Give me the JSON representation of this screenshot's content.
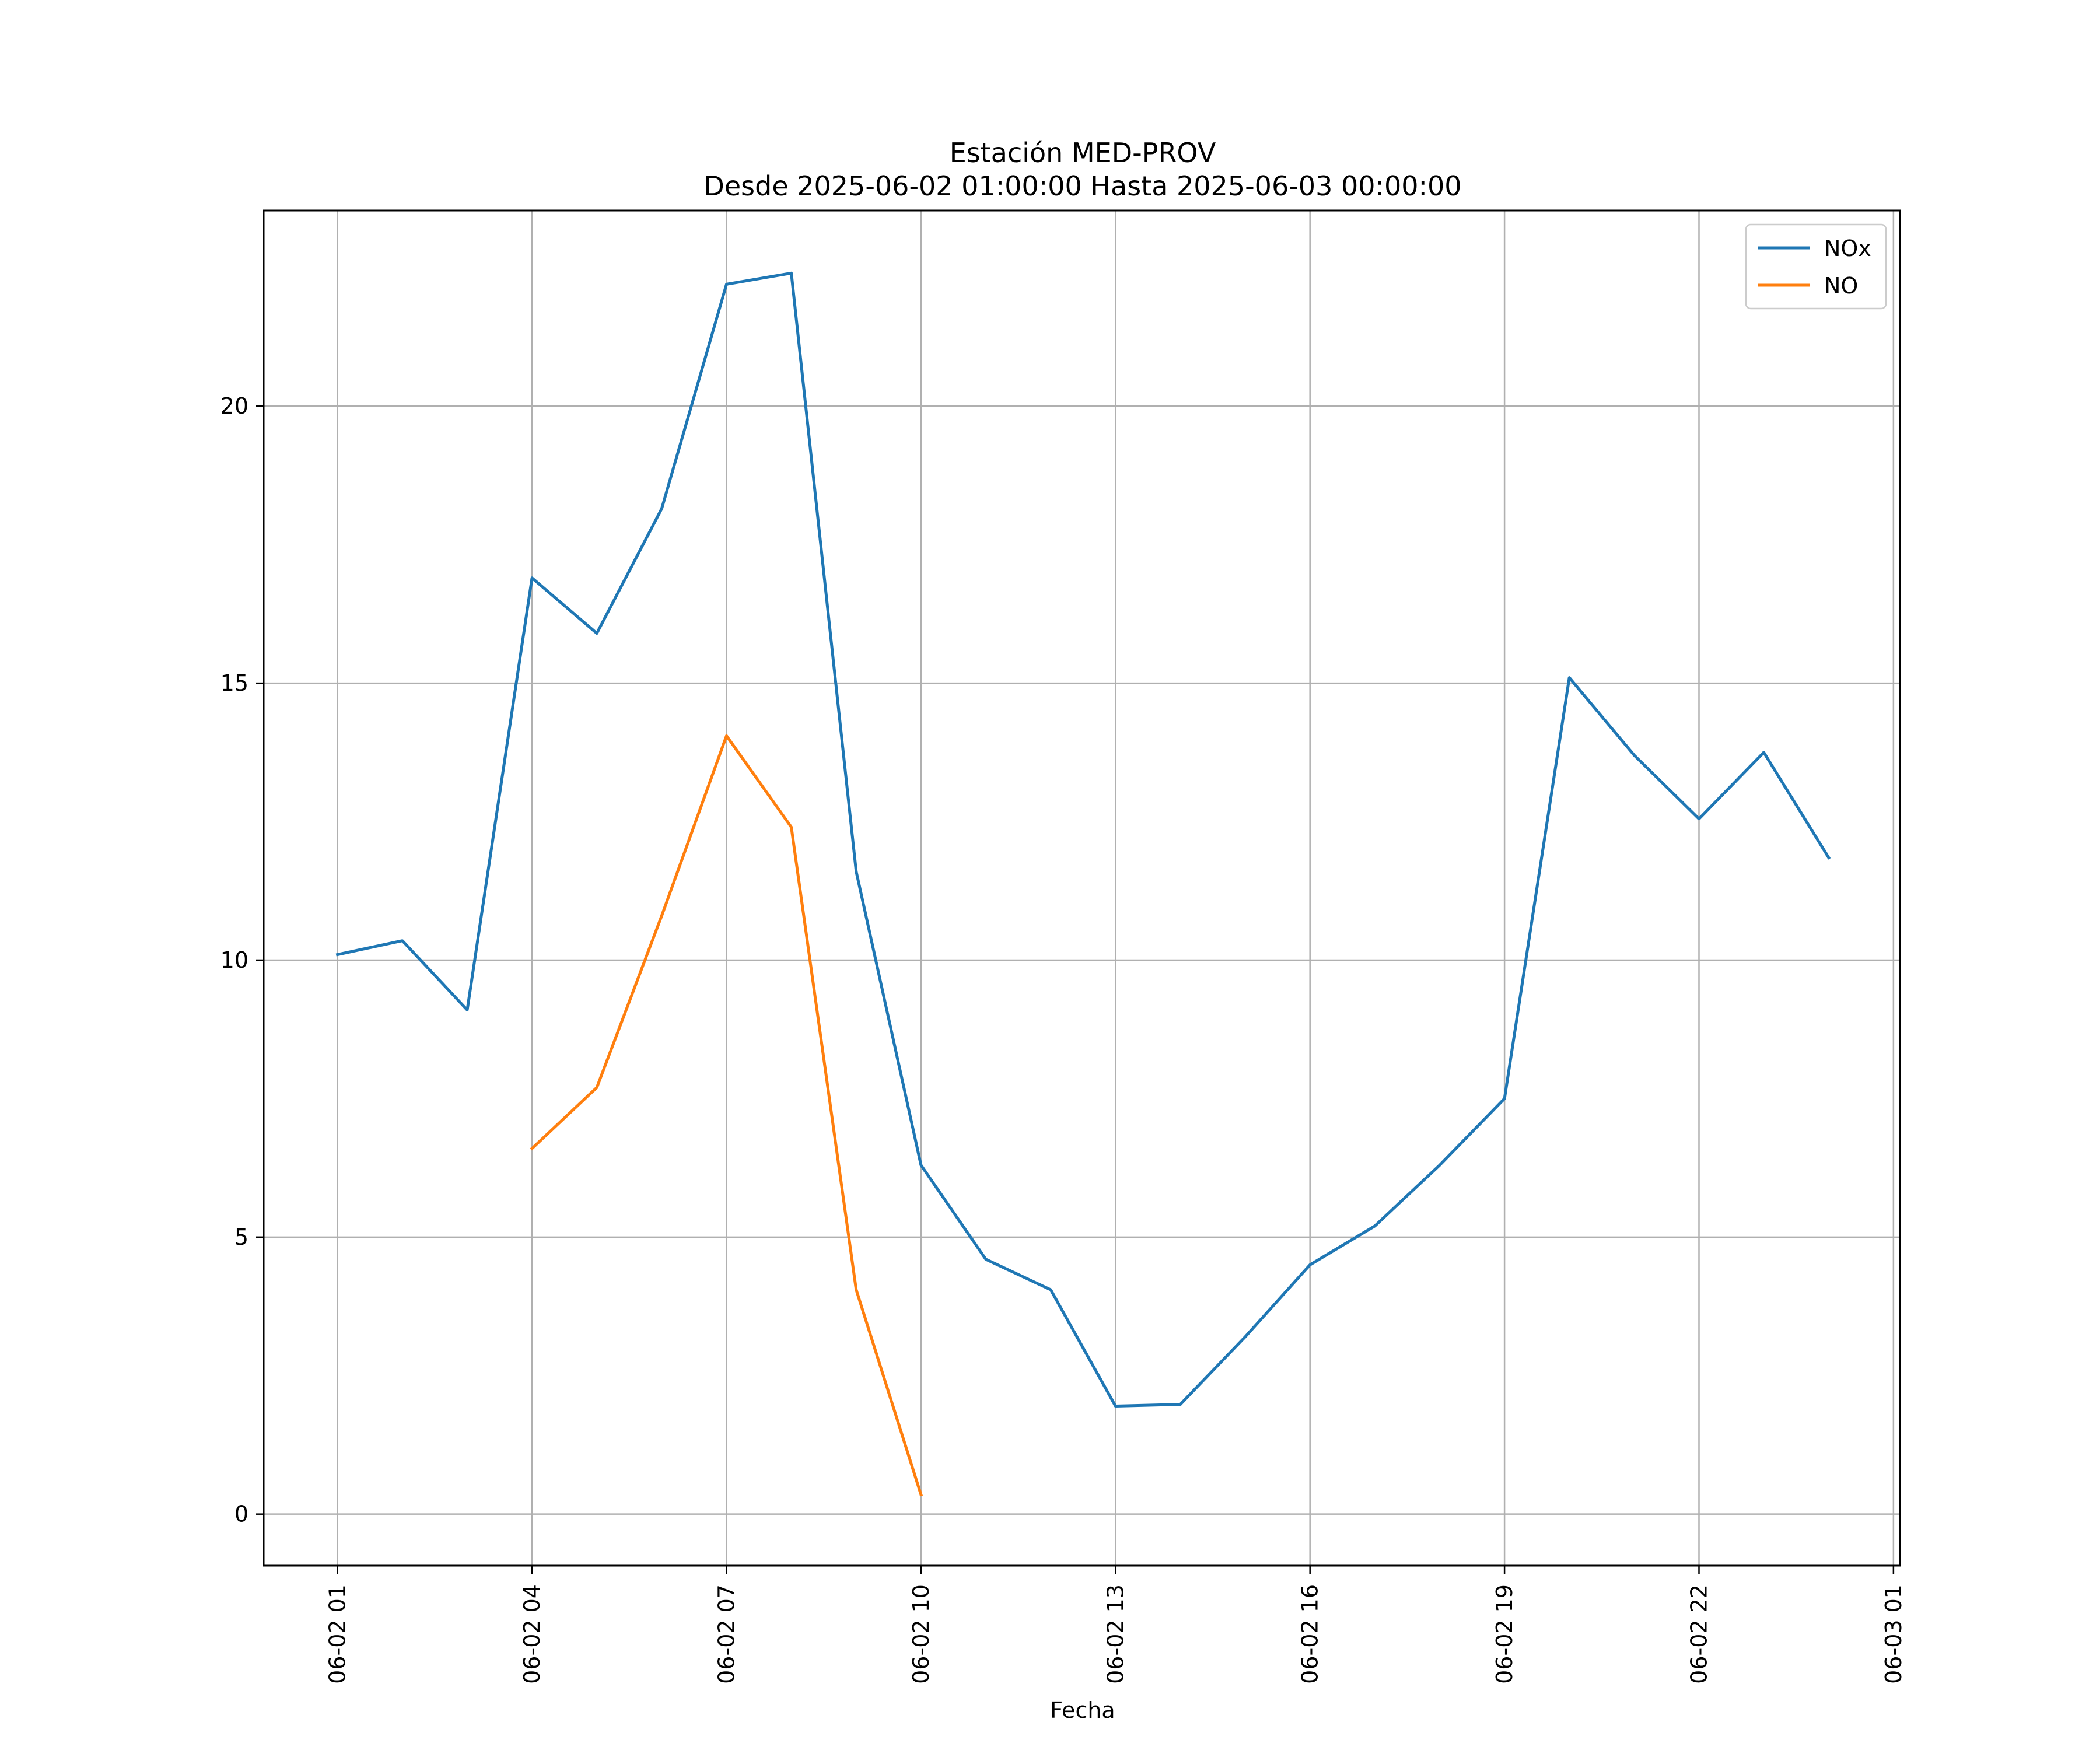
{
  "chart_data": {
    "type": "line",
    "title": "Estación MED-PROV",
    "subtitle": "Desde 2025-06-02 01:00:00 Hasta 2025-06-03 00:00:00",
    "xlabel": "Fecha",
    "ylabel": "",
    "x_ticks": [
      {
        "hour": 1,
        "label": "06-02 01"
      },
      {
        "hour": 4,
        "label": "06-02 04"
      },
      {
        "hour": 7,
        "label": "06-02 07"
      },
      {
        "hour": 10,
        "label": "06-02 10"
      },
      {
        "hour": 13,
        "label": "06-02 13"
      },
      {
        "hour": 16,
        "label": "06-02 16"
      },
      {
        "hour": 19,
        "label": "06-02 19"
      },
      {
        "hour": 22,
        "label": "06-02 22"
      },
      {
        "hour": 25,
        "label": "06-03 01"
      }
    ],
    "y_ticks": [
      0,
      5,
      10,
      15,
      20
    ],
    "xlim_hours": [
      -0.14,
      25.1
    ],
    "ylim": [
      -0.93,
      23.53
    ],
    "grid": true,
    "legend_position": "top-right",
    "series": [
      {
        "name": "NOx",
        "color": "#1f77b4",
        "points": [
          {
            "hour": 1,
            "value": 10.1
          },
          {
            "hour": 2,
            "value": 10.35
          },
          {
            "hour": 3,
            "value": 9.1
          },
          {
            "hour": 4,
            "value": 16.9
          },
          {
            "hour": 5,
            "value": 15.9
          },
          {
            "hour": 6,
            "value": 18.15
          },
          {
            "hour": 7,
            "value": 22.2
          },
          {
            "hour": 8,
            "value": 22.4
          },
          {
            "hour": 9,
            "value": 11.6
          },
          {
            "hour": 10,
            "value": 6.3
          },
          {
            "hour": 11,
            "value": 4.6
          },
          {
            "hour": 12,
            "value": 4.05
          },
          {
            "hour": 13,
            "value": 1.95
          },
          {
            "hour": 14,
            "value": 1.98
          },
          {
            "hour": 15,
            "value": 3.2
          },
          {
            "hour": 16,
            "value": 4.5
          },
          {
            "hour": 17,
            "value": 5.2
          },
          {
            "hour": 18,
            "value": 6.3
          },
          {
            "hour": 19,
            "value": 7.5
          },
          {
            "hour": 20,
            "value": 15.1
          },
          {
            "hour": 21,
            "value": 13.7
          },
          {
            "hour": 22,
            "value": 12.55
          },
          {
            "hour": 23,
            "value": 13.75
          },
          {
            "hour": 24,
            "value": 11.85
          }
        ]
      },
      {
        "name": "NO",
        "color": "#ff7f0e",
        "points": [
          {
            "hour": 4,
            "value": 6.6
          },
          {
            "hour": 5,
            "value": 7.7
          },
          {
            "hour": 6,
            "value": 10.8
          },
          {
            "hour": 7,
            "value": 14.05
          },
          {
            "hour": 8,
            "value": 12.4
          },
          {
            "hour": 9,
            "value": 4.05
          },
          {
            "hour": 10,
            "value": 0.35
          }
        ]
      }
    ]
  }
}
